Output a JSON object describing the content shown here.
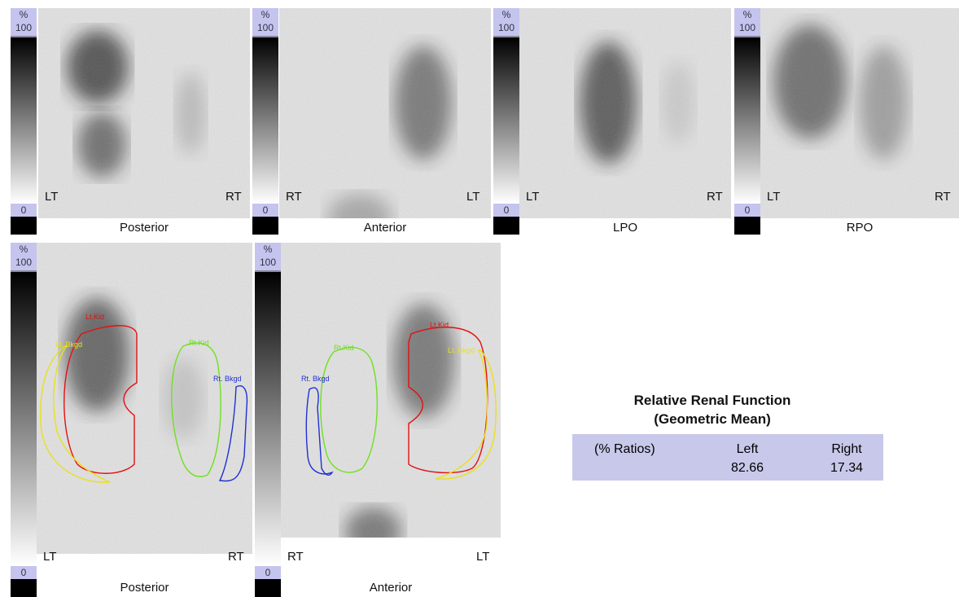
{
  "panels": [
    {
      "view": "Posterior",
      "scale": {
        "unit": "%",
        "max": "100",
        "min": "0"
      },
      "left": "LT",
      "right": "RT"
    },
    {
      "view": "Anterior",
      "scale": {
        "unit": "%",
        "max": "100",
        "min": "0"
      },
      "left": "RT",
      "right": "LT"
    },
    {
      "view": "LPO",
      "scale": {
        "unit": "%",
        "max": "100",
        "min": "0"
      },
      "left": "LT",
      "right": "RT"
    },
    {
      "view": "RPO",
      "scale": {
        "unit": "%",
        "max": "100",
        "min": "0"
      },
      "left": "LT",
      "right": "RT"
    },
    {
      "view": "Posterior",
      "scale": {
        "unit": "%",
        "max": "100",
        "min": "0"
      },
      "left": "LT",
      "right": "RT",
      "rois": [
        {
          "label": "Lt.Kid",
          "color": "#e41010"
        },
        {
          "label": "Lt. Bkgd",
          "color": "#e8e020"
        },
        {
          "label": "Rt.Kid",
          "color": "#70e020"
        },
        {
          "label": "Rt. Bkgd",
          "color": "#2030d0"
        }
      ]
    },
    {
      "view": "Anterior",
      "scale": {
        "unit": "%",
        "max": "100",
        "min": "0"
      },
      "left": "RT",
      "right": "LT",
      "rois": [
        {
          "label": "Lt.Kid",
          "color": "#e41010"
        },
        {
          "label": "Lt. Bkgd",
          "color": "#e8e020"
        },
        {
          "label": "Rt.Kid",
          "color": "#70e020"
        },
        {
          "label": "Rt. Bkgd",
          "color": "#2030d0"
        }
      ]
    }
  ],
  "table": {
    "title": "Relative Renal Function",
    "subtitle": "(Geometric Mean)",
    "header": [
      "(% Ratios)",
      "Left",
      "Right"
    ],
    "values": [
      82.66,
      17.34
    ]
  }
}
